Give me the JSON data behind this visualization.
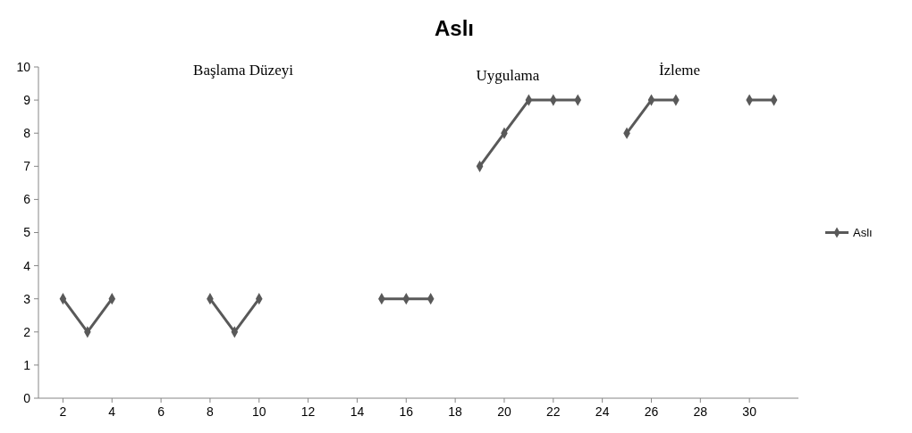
{
  "chart_data": {
    "type": "line",
    "title": "Aslı",
    "x": [
      2,
      3,
      4,
      5,
      6,
      7,
      8,
      9,
      10,
      11,
      12,
      13,
      14,
      15,
      16,
      17,
      18,
      19,
      20,
      21,
      22,
      23,
      24,
      25,
      26,
      27,
      28,
      29,
      30,
      31
    ],
    "series": [
      {
        "name": "Aslı",
        "color": "#595959",
        "values": [
          3,
          2,
          3,
          null,
          null,
          null,
          3,
          2,
          3,
          null,
          null,
          null,
          null,
          3,
          3,
          3,
          null,
          7,
          8,
          9,
          9,
          9,
          null,
          8,
          9,
          9,
          null,
          null,
          9,
          9
        ]
      }
    ],
    "xlim": [
      1,
      32
    ],
    "xticks": [
      2,
      4,
      6,
      8,
      10,
      12,
      14,
      16,
      18,
      20,
      22,
      24,
      26,
      28,
      30
    ],
    "ylim": [
      0,
      10
    ],
    "yticks": [
      0,
      1,
      2,
      3,
      4,
      5,
      6,
      7,
      8,
      9,
      10
    ],
    "annotations": [
      "Başlama Düzeyi",
      "Uygulama",
      "İzleme"
    ],
    "legend": "right",
    "marker": "diamond",
    "line_style": "solid",
    "grid": false
  }
}
